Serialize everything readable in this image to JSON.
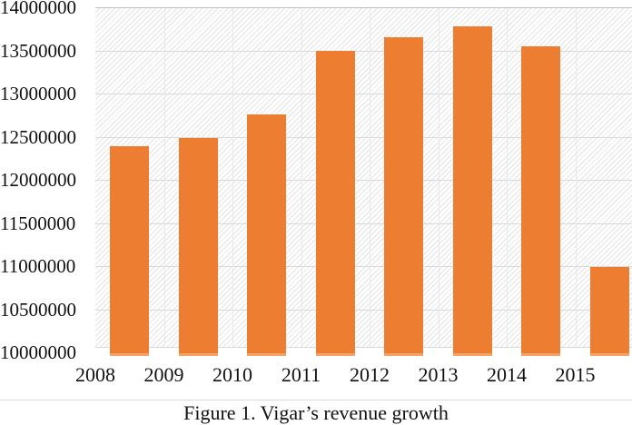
{
  "figure": {
    "caption": "Figure 1. Vigar’s revenue growth"
  },
  "chart_data": {
    "type": "bar",
    "title": "",
    "xlabel": "",
    "ylabel": "",
    "categories": [
      "2008",
      "2009",
      "2010",
      "2011",
      "2012",
      "2013",
      "2014",
      "2015"
    ],
    "values": [
      12400000,
      12500000,
      12770000,
      13510000,
      13660000,
      13790000,
      13560000,
      11000000
    ],
    "ylim": [
      10000000,
      14000000
    ],
    "ytick_step": 500000,
    "ytick_labels": [
      "14000000",
      "13500000",
      "13000000",
      "12500000",
      "12000000",
      "11500000",
      "11000000",
      "10500000",
      "10000000"
    ],
    "legend": "none",
    "grid": "horizontal-and-faint-vertical",
    "plot_background": "diagonal-hatch",
    "colors": {
      "bar": "#ED7D31",
      "bar_bottom_edge": "#F4A469",
      "gridline": "#D9D9D9",
      "vertical_gridline": "#E9E9E9",
      "hatch_line": "#E3E3E3",
      "plot_top_border": "#BFBFBF",
      "text": "#111111"
    }
  }
}
